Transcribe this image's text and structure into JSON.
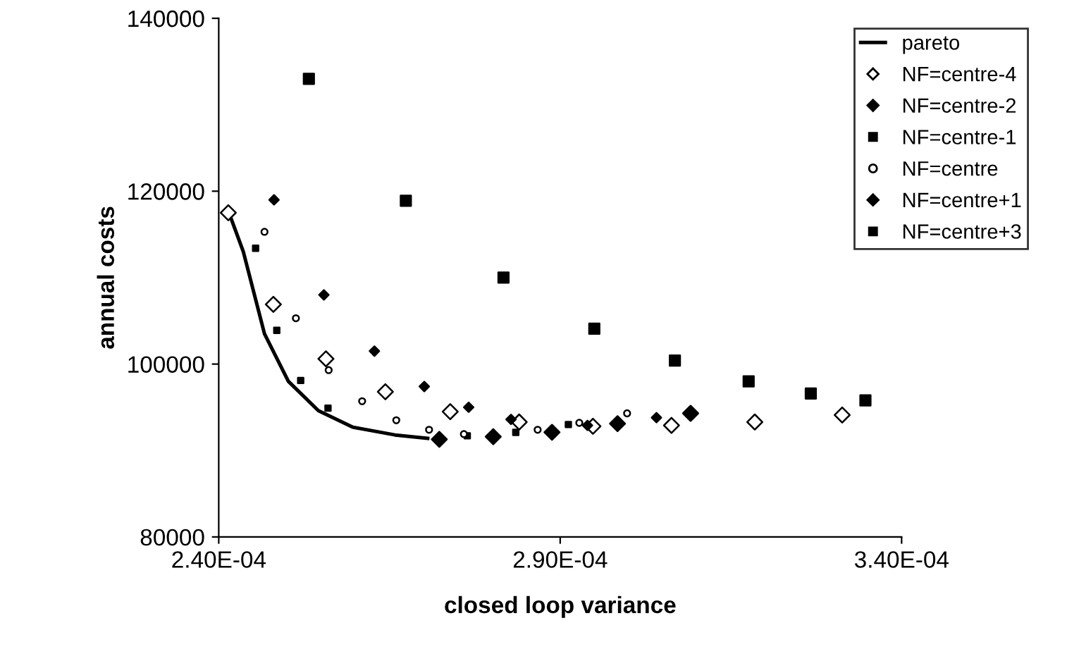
{
  "chart_data": {
    "type": "scatter",
    "xlabel": "closed loop variance",
    "ylabel": "annual costs",
    "xlim": [
      0.00024,
      0.00034
    ],
    "xticks": [
      {
        "value": 0.00024,
        "label": "2.40E-04"
      },
      {
        "value": 0.00029,
        "label": "2.90E-04"
      },
      {
        "value": 0.00034,
        "label": "3.40E-04"
      }
    ],
    "ylim": [
      80000,
      140000
    ],
    "yticks": [
      80000,
      100000,
      120000,
      140000
    ],
    "grid": false,
    "legend": "top right",
    "series": [
      {
        "name": "pareto",
        "type": "line",
        "color": "#000000",
        "marker": "none",
        "line_style": "solid",
        "x": [
          0.0002415,
          0.0002436,
          0.0002467,
          0.0002502,
          0.0002546,
          0.0002596,
          0.0002658,
          0.0002706
        ],
        "values": [
          117500,
          113000,
          103500,
          98000,
          94600,
          92700,
          91800,
          91400
        ]
      },
      {
        "name": "NF=centre-4",
        "color": "#000000",
        "marker": "diamond",
        "x": [
          0.0002414,
          0.000248,
          0.0002557,
          0.0002644,
          0.0002739,
          0.000284,
          0.0002948,
          0.0003063,
          0.0003185,
          0.0003313
        ],
        "values": [
          117500,
          106900,
          100600,
          96800,
          94500,
          93300,
          92800,
          92900,
          93300,
          94100
        ]
      },
      {
        "name": "NF=centre-2",
        "color": "#000000",
        "marker": "diamond",
        "x": [
          0.0002481,
          0.0002554,
          0.0002628,
          0.0002701,
          0.0002766,
          0.0002828,
          0.000294,
          0.0003041
        ],
        "values": [
          119000,
          108000,
          101500,
          97400,
          95000,
          93600,
          92900,
          93800
        ]
      },
      {
        "name": "NF=centre-1",
        "color": "#000000",
        "marker": "square",
        "x": [
          0.0002454,
          0.0002485,
          0.000252,
          0.000256,
          0.0002764,
          0.0002835,
          0.0002912
        ],
        "values": [
          113400,
          103900,
          98100,
          94900,
          91700,
          92100,
          93000
        ]
      },
      {
        "name": "NF=centre",
        "color": "#000000",
        "marker": "circle",
        "x": [
          0.0002467,
          0.0002513,
          0.0002561,
          0.000261,
          0.000266,
          0.0002708,
          0.0002759,
          0.0002867,
          0.0002928,
          0.0002998
        ],
        "values": [
          115300,
          105300,
          99300,
          95700,
          93500,
          92400,
          91900,
          92400,
          93200,
          94300
        ]
      },
      {
        "name": "NF=centre+1",
        "color": "#000000",
        "marker": "diamond",
        "x": [
          0.0002723,
          0.0002802,
          0.0002888,
          0.0002984,
          0.0003091
        ],
        "values": [
          91300,
          91600,
          92100,
          93100,
          94300
        ]
      },
      {
        "name": "NF=centre+3",
        "color": "#000000",
        "marker": "square",
        "x": [
          0.0002532,
          0.0002674,
          0.0002817,
          0.000295,
          0.0003068,
          0.0003176,
          0.0003267,
          0.0003347
        ],
        "values": [
          133000,
          118900,
          110000,
          104100,
          100400,
          98000,
          96600,
          95800
        ]
      }
    ]
  }
}
